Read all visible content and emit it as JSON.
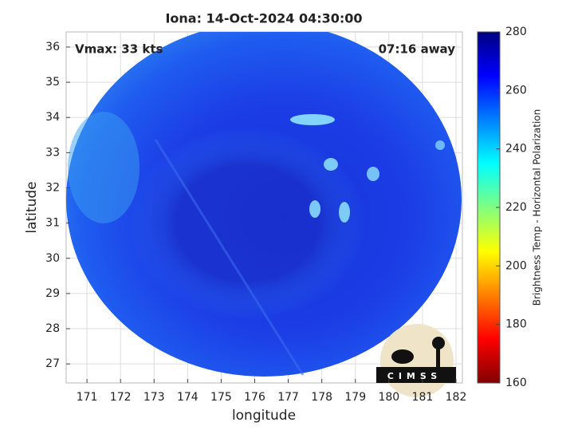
{
  "chart_data": {
    "type": "image",
    "title": "Iona: 14-Oct-2024 04:30:00",
    "annotations": [
      "Vmax: 33 kts",
      "07:16 away"
    ],
    "xlabel": "longitude",
    "ylabel": "latitude",
    "xlim": [
      170.38,
      182.19
    ],
    "xticks": [
      171,
      172,
      173,
      174,
      175,
      176,
      177,
      178,
      179,
      180,
      181,
      182
    ],
    "ylim": [
      26.46,
      36.43
    ],
    "yticks": [
      27,
      28,
      29,
      30,
      31,
      32,
      33,
      34,
      35,
      36
    ],
    "grid": true,
    "colorbar": {
      "label": "Brightness Temp - Horizontal Polarization",
      "lim": [
        160,
        280
      ],
      "ticks": [
        160,
        180,
        200,
        220,
        240,
        260,
        280
      ],
      "colormap": "jet"
    },
    "logo": "CIMSS"
  }
}
